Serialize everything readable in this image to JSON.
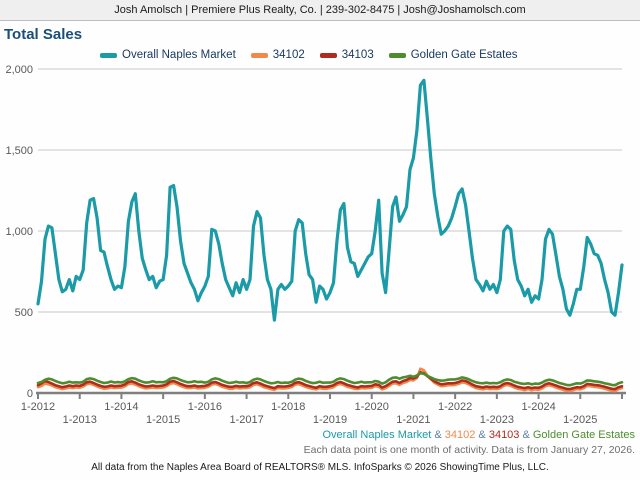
{
  "header": {
    "text": "Josh Amolsch | Premiere Plus Realty, Co. | 239-302-8475 | Josh@Joshamolsch.com"
  },
  "title": "Total Sales",
  "legend": {
    "items": [
      {
        "label": "Overall Naples Market",
        "color": "#1A9BA7"
      },
      {
        "label": "34102",
        "color": "#F08A4B"
      },
      {
        "label": "34103",
        "color": "#AF2B1E"
      },
      {
        "label": "Golden Gate Estates",
        "color": "#4E8D2E"
      }
    ]
  },
  "footer": {
    "series_line": [
      {
        "text": "Overall Naples Market",
        "color": "#1A9BA7"
      },
      {
        "text": " & ",
        "color": "#5B7FA3"
      },
      {
        "text": "34102",
        "color": "#F08A4B"
      },
      {
        "text": " & ",
        "color": "#5B7FA3"
      },
      {
        "text": "34103",
        "color": "#AF2B1E"
      },
      {
        "text": " & ",
        "color": "#5B7FA3"
      },
      {
        "text": "Golden Gate Estates",
        "color": "#4E8D2E"
      }
    ],
    "note": "Each data point is one month of activity. Data is from January 27, 2026.",
    "attribution": "All data from the Naples Area Board of REALTORS® MLS. InfoSparks © 2026 ShowingTime Plus, LLC."
  },
  "chart_data": {
    "type": "line",
    "title": "Total Sales",
    "interval": "month",
    "x_start": "1-2012",
    "x_end": "1-2026",
    "months_count": 169,
    "ylim": [
      0,
      2000
    ],
    "grid": true,
    "legend_position": "top",
    "y_ticks": [
      {
        "value": 0,
        "label": "0"
      },
      {
        "value": 500,
        "label": "500"
      },
      {
        "value": 1000,
        "label": "1,000"
      },
      {
        "value": 1500,
        "label": "1,500"
      },
      {
        "value": 2000,
        "label": "2,000"
      }
    ],
    "x_tick_labels": [
      "1-2012",
      "1-2013",
      "1-2014",
      "1-2015",
      "1-2016",
      "1-2017",
      "1-2018",
      "1-2019",
      "1-2020",
      "1-2021",
      "1-2022",
      "1-2023",
      "1-2024",
      "1-2025"
    ],
    "x_tick_every_months": 12,
    "series": [
      {
        "name": "Overall Naples Market",
        "color": "#1A9BA7",
        "width": 3.2,
        "values": [
          550,
          690,
          950,
          1030,
          1020,
          860,
          700,
          625,
          640,
          700,
          630,
          720,
          700,
          760,
          1050,
          1190,
          1200,
          1080,
          880,
          870,
          780,
          700,
          640,
          660,
          650,
          780,
          1060,
          1180,
          1230,
          1000,
          830,
          760,
          700,
          720,
          650,
          690,
          700,
          850,
          1270,
          1280,
          1150,
          940,
          800,
          740,
          680,
          640,
          570,
          620,
          660,
          720,
          1010,
          1000,
          920,
          800,
          700,
          650,
          600,
          680,
          620,
          700,
          640,
          700,
          1030,
          1120,
          1080,
          850,
          700,
          640,
          450,
          640,
          670,
          640,
          660,
          690,
          1000,
          1070,
          1050,
          860,
          730,
          700,
          560,
          660,
          640,
          580,
          620,
          680,
          940,
          1130,
          1170,
          900,
          810,
          800,
          720,
          760,
          800,
          840,
          860,
          1000,
          1190,
          740,
          620,
          880,
          1150,
          1210,
          1060,
          1100,
          1150,
          1380,
          1450,
          1620,
          1900,
          1930,
          1700,
          1450,
          1230,
          1090,
          980,
          1000,
          1030,
          1080,
          1150,
          1230,
          1260,
          1160,
          1000,
          830,
          700,
          670,
          630,
          690,
          640,
          670,
          620,
          700,
          1000,
          1030,
          1010,
          820,
          700,
          660,
          600,
          640,
          560,
          600,
          580,
          700,
          950,
          1010,
          980,
          850,
          720,
          640,
          520,
          480,
          550,
          640,
          640,
          780,
          960,
          920,
          860,
          850,
          800,
          700,
          620,
          500,
          480,
          620,
          790
        ]
      },
      {
        "name": "34102",
        "color": "#F08A4B",
        "width": 2.6,
        "values": [
          36,
          44,
          58,
          54,
          46,
          36,
          30,
          24,
          28,
          34,
          30,
          34,
          32,
          40,
          54,
          58,
          50,
          40,
          32,
          26,
          28,
          34,
          30,
          32,
          33,
          41,
          55,
          60,
          52,
          42,
          34,
          28,
          30,
          34,
          30,
          32,
          34,
          42,
          57,
          62,
          54,
          44,
          36,
          30,
          30,
          34,
          28,
          30,
          32,
          38,
          52,
          56,
          48,
          38,
          32,
          26,
          26,
          32,
          28,
          30,
          30,
          36,
          50,
          54,
          46,
          36,
          30,
          24,
          20,
          30,
          28,
          28,
          31,
          37,
          51,
          55,
          47,
          37,
          31,
          25,
          22,
          30,
          26,
          26,
          30,
          36,
          50,
          56,
          48,
          38,
          32,
          26,
          24,
          30,
          28,
          30,
          32,
          42,
          38,
          22,
          30,
          44,
          58,
          60,
          50,
          62,
          68,
          80,
          78,
          92,
          150,
          140,
          110,
          86,
          64,
          52,
          42,
          44,
          48,
          48,
          50,
          56,
          66,
          62,
          52,
          40,
          30,
          26,
          22,
          28,
          24,
          26,
          24,
          30,
          44,
          50,
          44,
          34,
          26,
          22,
          18,
          24,
          18,
          22,
          20,
          28,
          42,
          48,
          42,
          34,
          26,
          20,
          14,
          12,
          18,
          24,
          22,
          30,
          44,
          42,
          38,
          36,
          32,
          26,
          20,
          14,
          12,
          24,
          30
        ]
      },
      {
        "name": "34103",
        "color": "#AF2B1E",
        "width": 2.6,
        "values": [
          48,
          60,
          74,
          68,
          58,
          48,
          42,
          36,
          40,
          46,
          42,
          46,
          44,
          52,
          66,
          70,
          62,
          52,
          44,
          38,
          40,
          46,
          42,
          44,
          45,
          53,
          68,
          72,
          64,
          54,
          46,
          40,
          42,
          46,
          42,
          44,
          46,
          54,
          70,
          74,
          66,
          56,
          48,
          42,
          42,
          46,
          40,
          42,
          44,
          50,
          64,
          68,
          60,
          50,
          44,
          38,
          38,
          44,
          40,
          42,
          42,
          48,
          62,
          66,
          58,
          48,
          42,
          36,
          30,
          42,
          40,
          40,
          43,
          49,
          63,
          67,
          59,
          49,
          43,
          37,
          32,
          42,
          38,
          38,
          42,
          48,
          62,
          68,
          60,
          50,
          44,
          38,
          34,
          42,
          40,
          42,
          44,
          54,
          50,
          34,
          42,
          56,
          70,
          72,
          62,
          74,
          80,
          92,
          90,
          100,
          128,
          122,
          104,
          88,
          72,
          62,
          54,
          56,
          60,
          60,
          62,
          68,
          78,
          74,
          64,
          52,
          42,
          38,
          34,
          40,
          36,
          38,
          36,
          42,
          56,
          62,
          56,
          46,
          38,
          34,
          30,
          36,
          30,
          34,
          32,
          40,
          54,
          60,
          54,
          46,
          38,
          32,
          26,
          24,
          30,
          36,
          34,
          42,
          56,
          54,
          50,
          48,
          44,
          38,
          32,
          26,
          24,
          36,
          42
        ]
      },
      {
        "name": "Golden Gate Estates",
        "color": "#4E8D2E",
        "width": 2.6,
        "values": [
          62,
          68,
          82,
          88,
          84,
          74,
          66,
          60,
          63,
          70,
          64,
          66,
          64,
          70,
          85,
          90,
          86,
          76,
          68,
          62,
          64,
          71,
          65,
          67,
          65,
          72,
          86,
          92,
          88,
          78,
          70,
          64,
          66,
          72,
          66,
          68,
          66,
          73,
          88,
          94,
          90,
          80,
          72,
          66,
          67,
          73,
          67,
          69,
          64,
          70,
          84,
          90,
          86,
          76,
          68,
          62,
          64,
          70,
          64,
          66,
          62,
          68,
          82,
          88,
          84,
          74,
          66,
          60,
          62,
          68,
          62,
          64,
          63,
          69,
          83,
          89,
          85,
          75,
          67,
          61,
          63,
          69,
          63,
          65,
          64,
          70,
          84,
          90,
          86,
          76,
          68,
          62,
          64,
          70,
          64,
          66,
          66,
          74,
          70,
          58,
          66,
          82,
          94,
          96,
          88,
          96,
          100,
          106,
          100,
          108,
          122,
          118,
          106,
          96,
          86,
          80,
          76,
          78,
          82,
          84,
          84,
          88,
          96,
          92,
          84,
          74,
          66,
          62,
          60,
          64,
          60,
          62,
          60,
          66,
          78,
          84,
          80,
          70,
          64,
          58,
          56,
          60,
          54,
          58,
          56,
          64,
          76,
          82,
          78,
          70,
          62,
          56,
          50,
          48,
          54,
          60,
          58,
          66,
          78,
          76,
          72,
          70,
          66,
          60,
          56,
          50,
          48,
          60,
          66
        ]
      }
    ]
  }
}
